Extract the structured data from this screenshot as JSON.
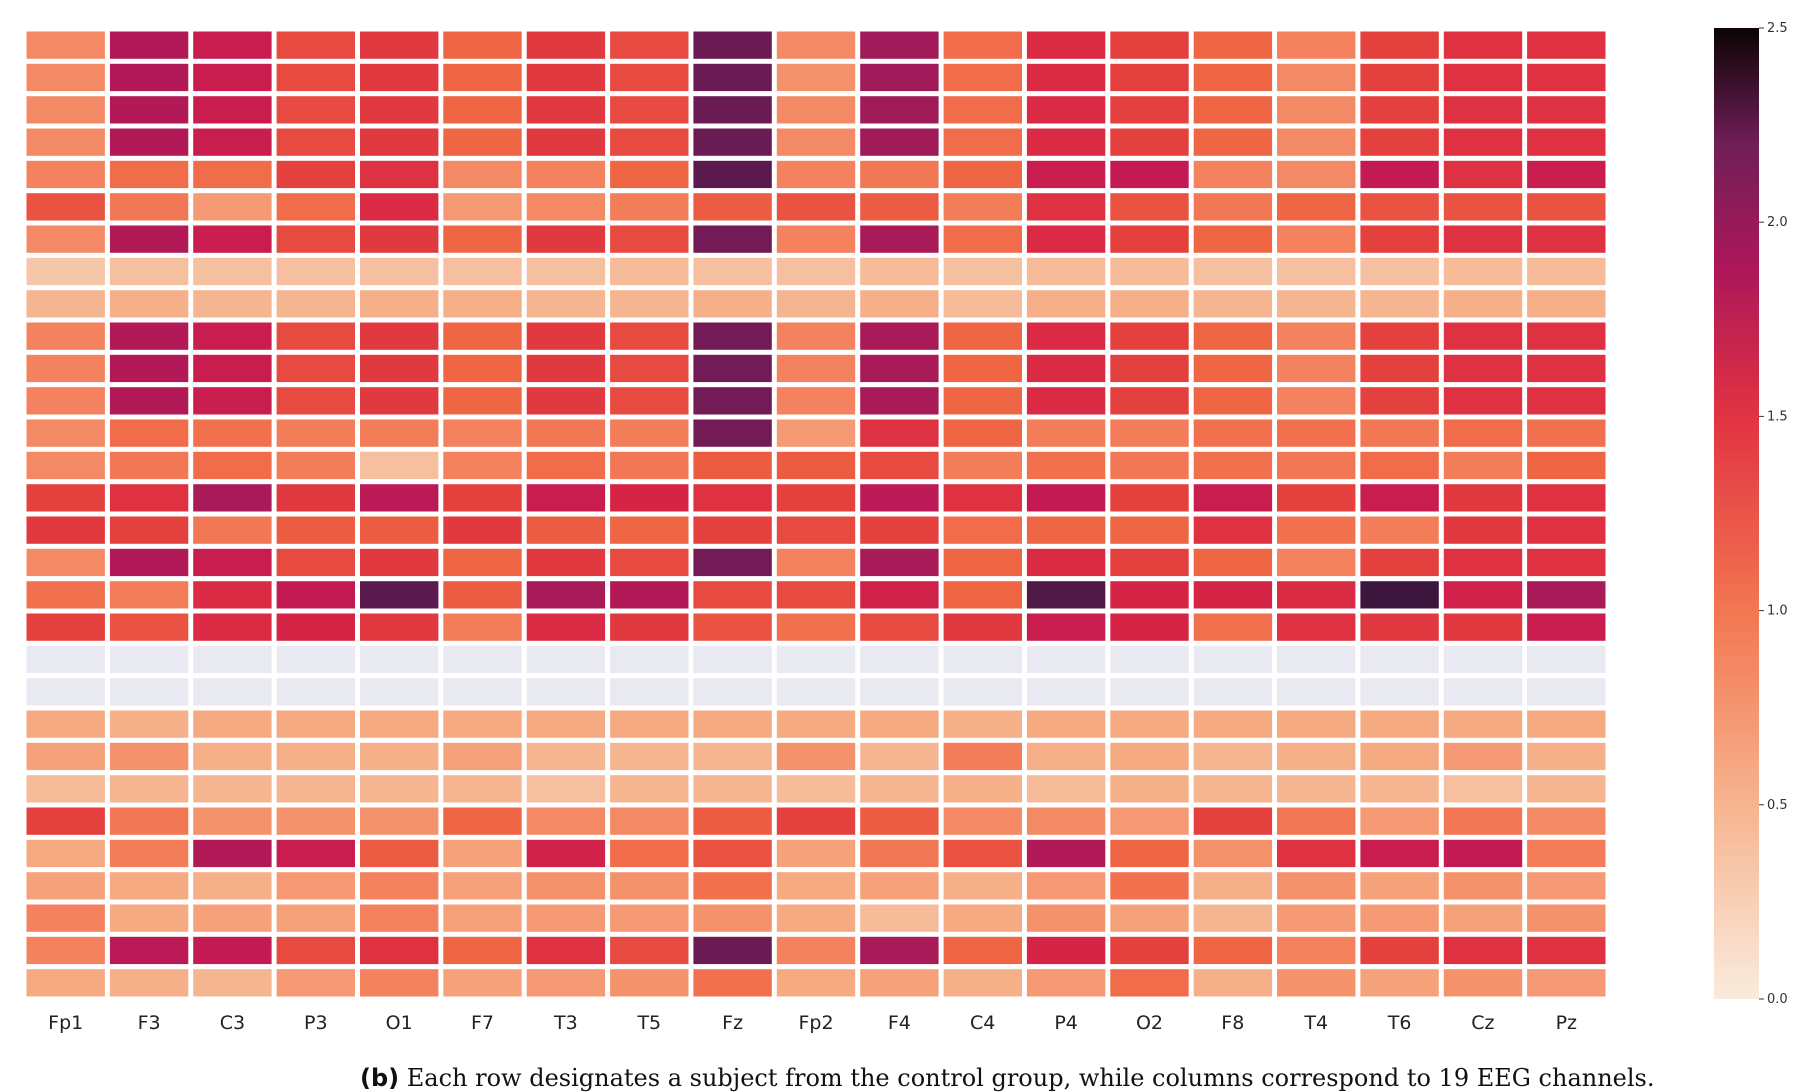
{
  "chart_data": {
    "type": "heatmap",
    "title": "",
    "xlabel": "",
    "ylabel": "",
    "columns": [
      "Fp1",
      "F3",
      "C3",
      "P3",
      "O1",
      "F7",
      "T3",
      "T5",
      "Fz",
      "Fp2",
      "F4",
      "C4",
      "P4",
      "O2",
      "F8",
      "T4",
      "T6",
      "Cz",
      "Pz"
    ],
    "zlim": [
      0,
      2.5
    ],
    "colorbar": {
      "ticks": [
        "0.0",
        "0.5",
        "1.0",
        "1.5",
        "2.0",
        "2.5"
      ],
      "tick_values": [
        0,
        0.5,
        1.0,
        1.5,
        2.0,
        2.5
      ],
      "position": "right"
    },
    "colormap": "rocket_r",
    "grid": false,
    "values": [
      [
        0.7,
        1.65,
        1.5,
        1.15,
        1.25,
        1.0,
        1.25,
        1.15,
        2.05,
        0.7,
        1.75,
        0.95,
        1.35,
        1.2,
        1.0,
        0.75,
        1.2,
        1.3,
        1.3
      ],
      [
        0.7,
        1.65,
        1.5,
        1.15,
        1.25,
        1.0,
        1.25,
        1.15,
        2.05,
        0.65,
        1.75,
        0.95,
        1.35,
        1.2,
        1.0,
        0.7,
        1.2,
        1.3,
        1.3
      ],
      [
        0.7,
        1.65,
        1.5,
        1.15,
        1.25,
        1.0,
        1.25,
        1.15,
        2.05,
        0.7,
        1.75,
        0.95,
        1.35,
        1.2,
        1.0,
        0.7,
        1.2,
        1.3,
        1.3
      ],
      [
        0.7,
        1.65,
        1.5,
        1.15,
        1.25,
        1.0,
        1.25,
        1.15,
        2.05,
        0.7,
        1.75,
        0.95,
        1.35,
        1.2,
        1.0,
        0.7,
        1.2,
        1.3,
        1.3
      ],
      [
        0.75,
        0.95,
        0.95,
        1.2,
        1.3,
        0.7,
        0.75,
        1.0,
        2.15,
        0.75,
        0.85,
        1.0,
        1.5,
        1.55,
        0.75,
        0.7,
        1.55,
        1.3,
        1.5
      ],
      [
        1.1,
        0.85,
        0.6,
        0.95,
        1.35,
        0.6,
        0.7,
        0.8,
        1.05,
        1.1,
        1.05,
        0.8,
        1.3,
        1.1,
        0.85,
        1.0,
        1.1,
        1.1,
        1.1
      ],
      [
        0.7,
        1.65,
        1.5,
        1.15,
        1.25,
        1.0,
        1.25,
        1.15,
        2.0,
        0.75,
        1.7,
        0.95,
        1.35,
        1.2,
        1.0,
        0.75,
        1.2,
        1.3,
        1.3
      ],
      [
        0.25,
        0.3,
        0.3,
        0.3,
        0.3,
        0.3,
        0.3,
        0.35,
        0.3,
        0.3,
        0.35,
        0.3,
        0.35,
        0.35,
        0.3,
        0.3,
        0.3,
        0.35,
        0.35
      ],
      [
        0.4,
        0.45,
        0.4,
        0.4,
        0.45,
        0.45,
        0.4,
        0.4,
        0.45,
        0.4,
        0.45,
        0.35,
        0.45,
        0.45,
        0.4,
        0.4,
        0.4,
        0.45,
        0.45
      ],
      [
        0.75,
        1.65,
        1.5,
        1.15,
        1.25,
        1.0,
        1.25,
        1.15,
        2.0,
        0.75,
        1.7,
        1.0,
        1.35,
        1.2,
        1.0,
        0.75,
        1.2,
        1.3,
        1.3
      ],
      [
        0.75,
        1.65,
        1.5,
        1.15,
        1.25,
        1.0,
        1.25,
        1.15,
        2.0,
        0.75,
        1.7,
        1.0,
        1.35,
        1.2,
        1.0,
        0.75,
        1.2,
        1.3,
        1.3
      ],
      [
        0.75,
        1.65,
        1.5,
        1.15,
        1.25,
        1.0,
        1.25,
        1.15,
        2.0,
        0.75,
        1.7,
        1.0,
        1.35,
        1.2,
        1.0,
        0.75,
        1.2,
        1.3,
        1.3
      ],
      [
        0.7,
        0.95,
        0.9,
        0.8,
        0.8,
        0.75,
        0.85,
        0.8,
        2.0,
        0.6,
        1.3,
        1.0,
        0.8,
        0.8,
        0.9,
        0.9,
        0.85,
        0.95,
        0.9
      ],
      [
        0.7,
        0.85,
        0.95,
        0.8,
        0.3,
        0.75,
        0.95,
        0.85,
        1.05,
        1.05,
        1.15,
        0.8,
        0.9,
        0.85,
        0.9,
        0.85,
        0.95,
        0.8,
        1.0
      ],
      [
        1.2,
        1.3,
        1.7,
        1.25,
        1.6,
        1.2,
        1.5,
        1.4,
        1.3,
        1.2,
        1.6,
        1.3,
        1.55,
        1.2,
        1.5,
        1.2,
        1.5,
        1.25,
        1.3
      ],
      [
        1.25,
        1.2,
        0.85,
        1.05,
        1.05,
        1.25,
        1.05,
        1.0,
        1.2,
        1.15,
        1.2,
        0.95,
        1.0,
        1.0,
        1.3,
        0.9,
        0.8,
        1.25,
        1.3
      ],
      [
        0.7,
        1.65,
        1.5,
        1.15,
        1.25,
        1.0,
        1.25,
        1.15,
        2.0,
        0.75,
        1.7,
        1.0,
        1.35,
        1.2,
        1.0,
        0.75,
        1.2,
        1.3,
        1.3
      ],
      [
        0.9,
        0.8,
        1.35,
        1.55,
        2.15,
        1.05,
        1.7,
        1.65,
        1.15,
        1.15,
        1.45,
        1.0,
        2.2,
        1.4,
        1.4,
        1.35,
        2.3,
        1.45,
        1.7
      ],
      [
        1.2,
        1.1,
        1.35,
        1.4,
        1.25,
        0.8,
        1.35,
        1.25,
        1.1,
        0.9,
        1.15,
        1.25,
        1.5,
        1.4,
        0.9,
        1.3,
        1.25,
        1.25,
        1.5
      ],
      [
        0.02,
        0.02,
        0.02,
        0.02,
        0.02,
        0.02,
        0.02,
        0.02,
        0.02,
        0.02,
        0.02,
        0.02,
        0.02,
        0.02,
        0.02,
        0.02,
        0.02,
        0.02,
        0.02
      ],
      [
        0.02,
        0.02,
        0.02,
        0.02,
        0.02,
        0.02,
        0.02,
        0.02,
        0.02,
        0.02,
        0.02,
        0.02,
        0.02,
        0.02,
        0.02,
        0.02,
        0.02,
        0.02,
        0.02
      ],
      [
        0.5,
        0.45,
        0.5,
        0.5,
        0.5,
        0.5,
        0.5,
        0.5,
        0.5,
        0.5,
        0.5,
        0.45,
        0.5,
        0.5,
        0.5,
        0.5,
        0.5,
        0.5,
        0.5
      ],
      [
        0.55,
        0.65,
        0.45,
        0.45,
        0.45,
        0.55,
        0.4,
        0.4,
        0.4,
        0.65,
        0.4,
        0.8,
        0.45,
        0.5,
        0.4,
        0.45,
        0.5,
        0.6,
        0.45
      ],
      [
        0.35,
        0.4,
        0.4,
        0.4,
        0.4,
        0.4,
        0.3,
        0.4,
        0.4,
        0.35,
        0.4,
        0.45,
        0.35,
        0.45,
        0.4,
        0.4,
        0.4,
        0.3,
        0.4
      ],
      [
        1.2,
        0.85,
        0.65,
        0.65,
        0.65,
        1.0,
        0.7,
        0.7,
        1.05,
        1.2,
        1.05,
        0.7,
        0.7,
        0.6,
        1.2,
        0.85,
        0.6,
        0.85,
        0.7
      ],
      [
        0.5,
        0.8,
        1.65,
        1.5,
        1.05,
        0.55,
        1.45,
        0.95,
        1.1,
        0.55,
        0.85,
        1.1,
        1.65,
        1.0,
        0.65,
        1.3,
        1.5,
        1.55,
        0.8
      ],
      [
        0.55,
        0.5,
        0.45,
        0.6,
        0.75,
        0.55,
        0.65,
        0.65,
        0.9,
        0.5,
        0.55,
        0.45,
        0.6,
        0.9,
        0.45,
        0.65,
        0.55,
        0.65,
        0.6
      ],
      [
        0.75,
        0.5,
        0.55,
        0.55,
        0.75,
        0.55,
        0.6,
        0.6,
        0.65,
        0.5,
        0.35,
        0.5,
        0.65,
        0.55,
        0.4,
        0.6,
        0.6,
        0.55,
        0.65
      ],
      [
        0.75,
        1.6,
        1.55,
        1.15,
        1.3,
        1.0,
        1.3,
        1.15,
        2.05,
        0.75,
        1.7,
        1.0,
        1.4,
        1.2,
        1.0,
        0.75,
        1.2,
        1.3,
        1.3
      ],
      [
        0.5,
        0.45,
        0.4,
        0.6,
        0.75,
        0.55,
        0.6,
        0.65,
        0.9,
        0.5,
        0.55,
        0.45,
        0.6,
        0.95,
        0.45,
        0.65,
        0.55,
        0.65,
        0.6
      ]
    ]
  },
  "caption": {
    "prefix": "(b)",
    "text": "Each row designates a subject from the control group, while columns correspond to 19 EEG channels."
  }
}
